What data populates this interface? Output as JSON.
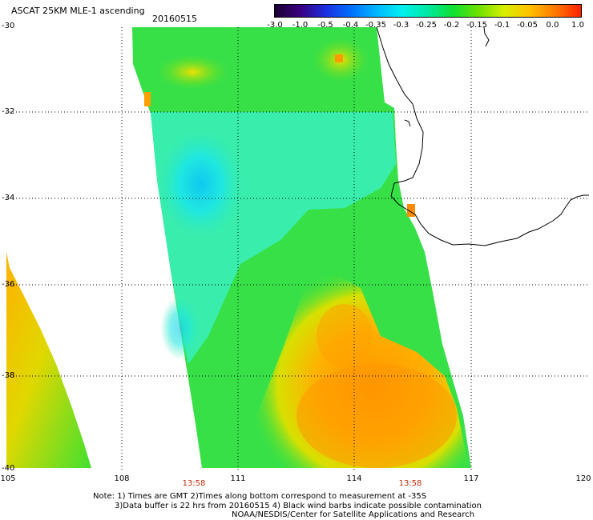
{
  "title": "ASCAT 25KM MLE-1 ascending",
  "date": "20160515",
  "colorbar": {
    "ticks": [
      "-3.0",
      "-1.0",
      "-0.5",
      "-0.4",
      "-0.35",
      "-0.3",
      "-0.25",
      "-0.2",
      "-0.15",
      "-0.1",
      "-0.05",
      "0.0",
      "1.0"
    ],
    "colors": [
      "#1a0030",
      "#3a0080",
      "#1a30e0",
      "#0070ff",
      "#00b8ff",
      "#00f0f0",
      "#00e8a0",
      "#10e030",
      "#70e000",
      "#d8f000",
      "#ffc000",
      "#ff7800",
      "#ff2000"
    ]
  },
  "lat_labels": [
    "-30",
    "-32",
    "-34",
    "-36",
    "-38",
    "-40"
  ],
  "lon_labels": [
    "105",
    "108",
    "111",
    "114",
    "117",
    "120"
  ],
  "times": [
    "13:58",
    "13:58"
  ],
  "notes": [
    "Note: 1) Times are GMT 2)Times along bottom correspond to measurement at -35S",
    "3)Data buffer is 22 hrs from 20160515 4) Black wind barbs indicate possible contamination",
    "NOAA/NESDIS/Center for Satellite Applications and Research"
  ],
  "map": {
    "lon_range": [
      105,
      120
    ],
    "lat_range": [
      -40,
      -30
    ],
    "gridlines": "dotted"
  }
}
